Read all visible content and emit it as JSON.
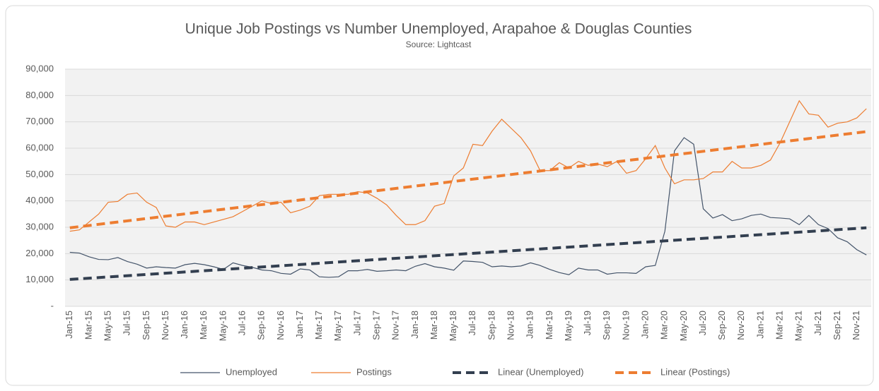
{
  "chart_data": {
    "type": "line",
    "title": "Unique Job Postings vs Number Unemployed, Arapahoe & Douglas Counties",
    "subtitle": "Source: Lightcast",
    "categories": [
      "Jan-15",
      null,
      "Mar-15",
      null,
      "May-15",
      null,
      "Jul-15",
      null,
      "Sep-15",
      null,
      "Nov-15",
      null,
      "Jan-16",
      null,
      "Mar-16",
      null,
      "May-16",
      null,
      "Jul-16",
      null,
      "Sep-16",
      null,
      "Nov-16",
      null,
      "Jan-17",
      null,
      "Mar-17",
      null,
      "May-17",
      null,
      "Jul-17",
      null,
      "Sep-17",
      null,
      "Nov-17",
      null,
      "Jan-18",
      null,
      "Mar-18",
      null,
      "May-18",
      null,
      "Jul-18",
      null,
      "Sep-18",
      null,
      "Nov-18",
      null,
      "Jan-19",
      null,
      "Mar-19",
      null,
      "May-19",
      null,
      "Jul-19",
      null,
      "Sep-19",
      null,
      "Nov-19",
      null,
      "Jan-20",
      null,
      "Mar-20",
      null,
      "May-20",
      null,
      "Jul-20",
      null,
      "Sep-20",
      null,
      "Nov-20",
      null,
      "Jan-21",
      null,
      "Mar-21",
      null,
      "May-21",
      null,
      "Jul-21",
      null,
      "Sep-21",
      null,
      "Nov-21",
      null
    ],
    "series": [
      {
        "name": "Unemployed",
        "color": "#44546a",
        "values": [
          20500,
          20200,
          18800,
          17800,
          17700,
          18500,
          17000,
          16000,
          14500,
          15000,
          14700,
          14500,
          15800,
          16300,
          15800,
          15000,
          14000,
          16500,
          15500,
          14800,
          13800,
          13500,
          12500,
          12200,
          14200,
          13800,
          11200,
          11000,
          11200,
          13500,
          13500,
          14000,
          13300,
          13500,
          13800,
          13500,
          15200,
          16200,
          15000,
          14500,
          13700,
          17200,
          17000,
          16700,
          15000,
          15300,
          15000,
          15300,
          16500,
          15500,
          14000,
          12800,
          12000,
          14500,
          13800,
          13800,
          12200,
          12700,
          12700,
          12500,
          15000,
          15500,
          28500,
          59000,
          64000,
          61500,
          37000,
          33500,
          34800,
          32500,
          33200,
          34500,
          35000,
          33700,
          33500,
          33200,
          31000,
          34500,
          31000,
          29500,
          26000,
          24500,
          21500,
          19500
        ]
      },
      {
        "name": "Postings",
        "color": "#ed7d31",
        "values": [
          28500,
          29000,
          32000,
          35000,
          39500,
          39800,
          42500,
          43000,
          39500,
          37500,
          30500,
          30000,
          32000,
          32000,
          31000,
          32000,
          33000,
          34000,
          36000,
          38000,
          40000,
          39000,
          39500,
          35500,
          36500,
          38000,
          42000,
          42500,
          42500,
          42500,
          43500,
          43000,
          41000,
          38500,
          34500,
          31000,
          31000,
          32500,
          38000,
          39000,
          49500,
          52500,
          61500,
          61000,
          66500,
          71000,
          67500,
          64000,
          59000,
          51500,
          51500,
          54500,
          52500,
          55000,
          53500,
          54000,
          53000,
          55000,
          50500,
          51500,
          56000,
          61000,
          52500,
          46500,
          48000,
          48000,
          48500,
          51000,
          51000,
          55000,
          52500,
          52500,
          53500,
          55500,
          62000,
          70000,
          78000,
          73000,
          72500,
          68000,
          69500,
          70000,
          71500,
          75000
        ]
      }
    ],
    "trendlines": [
      {
        "name": "Linear (Unemployed)",
        "color": "#333f50",
        "values": [
          10200,
          29800
        ]
      },
      {
        "name": "Linear (Postings)",
        "color": "#ed7d31",
        "values": [
          29800,
          66300
        ]
      }
    ],
    "ylim": [
      0,
      90000
    ],
    "yticks": [
      {
        "value": 0,
        "label": "-"
      },
      {
        "value": 10000,
        "label": "10,000"
      },
      {
        "value": 20000,
        "label": "20,000"
      },
      {
        "value": 30000,
        "label": "30,000"
      },
      {
        "value": 40000,
        "label": "40,000"
      },
      {
        "value": 50000,
        "label": "50,000"
      },
      {
        "value": 60000,
        "label": "60,000"
      },
      {
        "value": 70000,
        "label": "70,000"
      },
      {
        "value": 80000,
        "label": "80,000"
      },
      {
        "value": 90000,
        "label": "90,000"
      }
    ],
    "grid": true,
    "legend": "bottom"
  }
}
